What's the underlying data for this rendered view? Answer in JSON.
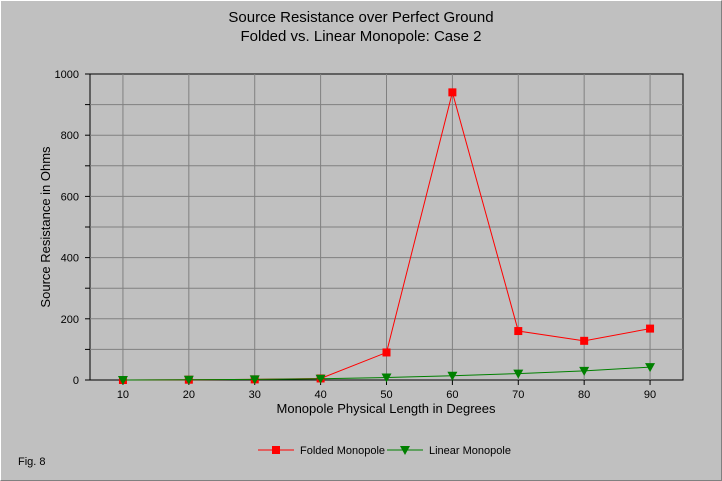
{
  "chart_data": {
    "type": "line",
    "title": "Source Resistance over Perfect Ground",
    "subtitle": "Folded vs. Linear Monopole: Case 2",
    "xlabel": "Monopole Physical Length in Degrees",
    "ylabel": "Source Resistance in Ohms",
    "x": [
      10,
      20,
      30,
      40,
      50,
      60,
      70,
      80,
      90
    ],
    "x_tick_labels": [
      "10",
      "20",
      "30",
      "40",
      "50",
      "60",
      "70",
      "80",
      "90"
    ],
    "xlim": [
      5,
      95
    ],
    "ylim": [
      0,
      1000
    ],
    "y_ticks": [
      0,
      200,
      400,
      600,
      800,
      1000
    ],
    "y_tick_labels": [
      "0",
      "200",
      "400",
      "600",
      "800",
      "1000"
    ],
    "grid": true,
    "legend_position": "bottom",
    "series": [
      {
        "name": "Folded Monopole",
        "color": "#ff0000",
        "marker": "square",
        "values": [
          0,
          1,
          2,
          5,
          90,
          940,
          160,
          128,
          168
        ]
      },
      {
        "name": "Linear Monopole",
        "color": "#008000",
        "marker": "triangle-down",
        "values": [
          0,
          1,
          2,
          4,
          8,
          14,
          21,
          30,
          42
        ]
      }
    ],
    "annotations": [
      "Fig. 8"
    ]
  }
}
